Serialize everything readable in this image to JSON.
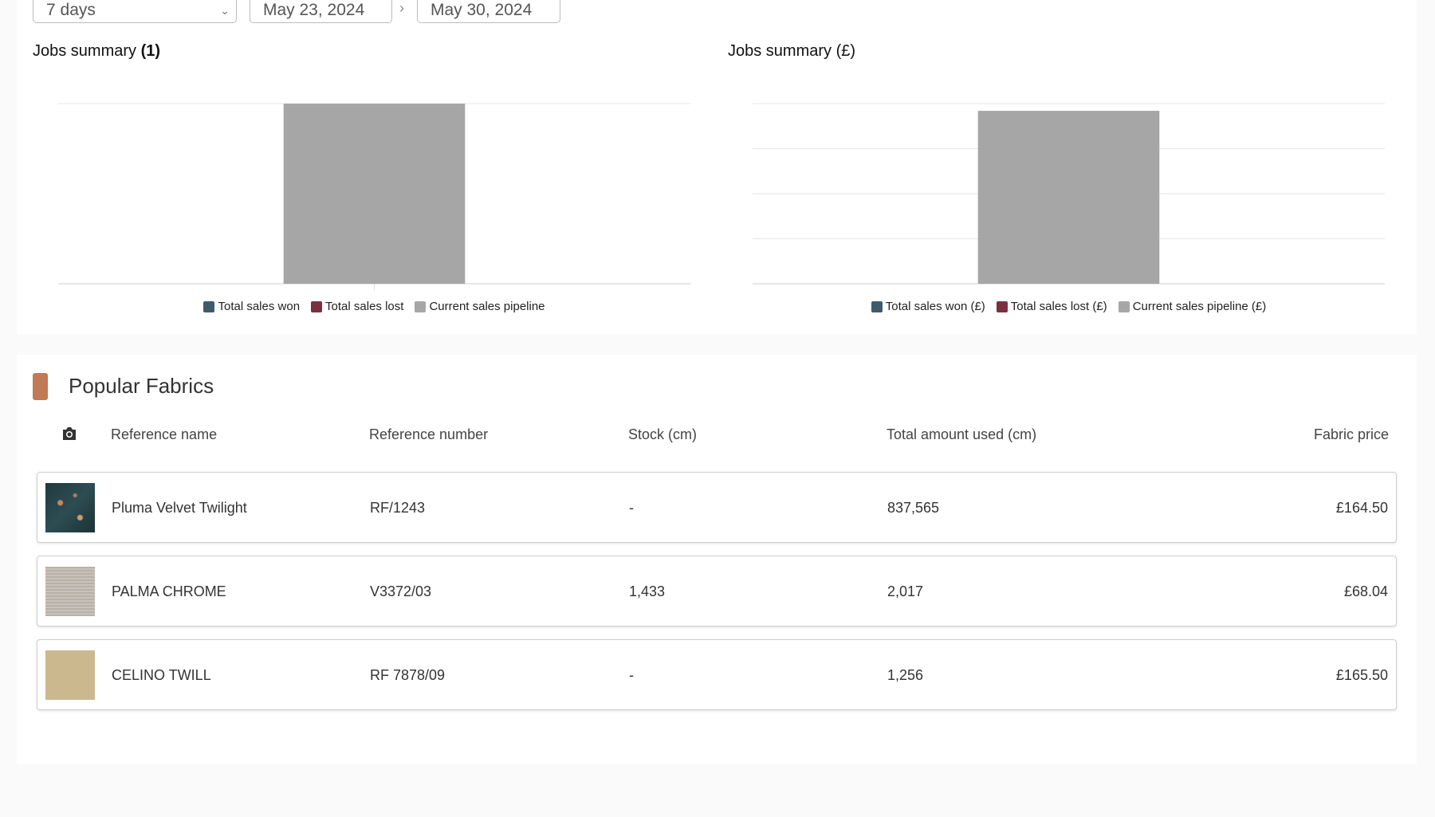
{
  "filters": {
    "period": "7 days",
    "start": "May 23, 2024",
    "end": "May 30, 2024"
  },
  "chart_data": [
    {
      "type": "bar",
      "stacked": true,
      "title": "Jobs summary",
      "title_note": "(1)",
      "categories": [
        null
      ],
      "series": [
        {
          "name": "Total sales won",
          "color": "#3e5b6b",
          "values": [
            0
          ]
        },
        {
          "name": "Total sales lost",
          "color": "#7b3040",
          "values": [
            0
          ]
        },
        {
          "name": "Current sales pipeline",
          "color": "#a6a6a6",
          "values": [
            1
          ]
        }
      ],
      "ylim": [
        0,
        1
      ],
      "yticks": [
        0,
        1
      ],
      "grid": true,
      "legend": "bottom"
    },
    {
      "type": "bar",
      "stacked": true,
      "title": "Jobs summary (£)",
      "categories": [
        null
      ],
      "series": [
        {
          "name": "Total sales won (£)",
          "color": "#3e5b6b",
          "values": [
            0
          ]
        },
        {
          "name": "Total sales lost (£)",
          "color": "#7b3040",
          "values": [
            0
          ]
        },
        {
          "name": "Current sales pipeline (£)",
          "color": "#a6a6a6",
          "values": [
            192
          ]
        }
      ],
      "ylim": [
        0,
        200
      ],
      "yticks": [
        0,
        50,
        100,
        150,
        200
      ],
      "grid": true,
      "legend": "bottom"
    }
  ],
  "table": {
    "title": "Popular Fabrics",
    "columns": [
      "Reference name",
      "Reference number",
      "Stock (cm)",
      "Total amount used (cm)",
      "Fabric price"
    ],
    "rows": [
      [
        "Pluma Velvet Twilight",
        "RF/1243",
        "-",
        "837,565",
        "£164.50"
      ],
      [
        "PALMA CHROME",
        "V3372/03",
        "1,433",
        "2,017",
        "£68.04"
      ],
      [
        "CELINO TWILL",
        "RF 7878/09",
        "-",
        "1,256",
        "£165.50"
      ]
    ]
  }
}
